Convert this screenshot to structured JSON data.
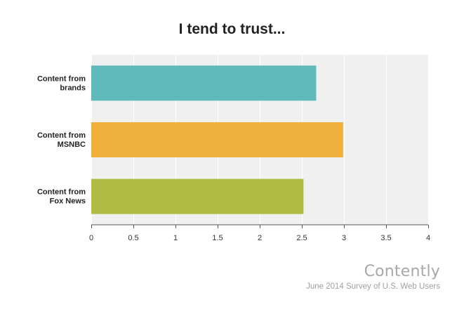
{
  "chart_data": {
    "type": "bar",
    "orientation": "horizontal",
    "title": "I tend to trust...",
    "categories": [
      "Content from brands",
      "Content from MSNBC",
      "Content from Fox News"
    ],
    "category_label_lines": [
      [
        "Content from",
        "brands"
      ],
      [
        "Content from",
        "MSNBC"
      ],
      [
        "Content from",
        "Fox News"
      ]
    ],
    "values": [
      2.67,
      2.99,
      2.52
    ],
    "colors": [
      "#60b9bb",
      "#efb03c",
      "#afbd45"
    ],
    "xlim": [
      0,
      4
    ],
    "xticks": [
      0,
      0.5,
      1,
      1.5,
      2,
      2.5,
      3,
      3.5,
      4
    ],
    "grid": true,
    "legend": "none",
    "xlabel": "",
    "ylabel": ""
  },
  "footer": {
    "brand": "Contently",
    "source": "June 2014 Survey of U.S. Web Users"
  }
}
